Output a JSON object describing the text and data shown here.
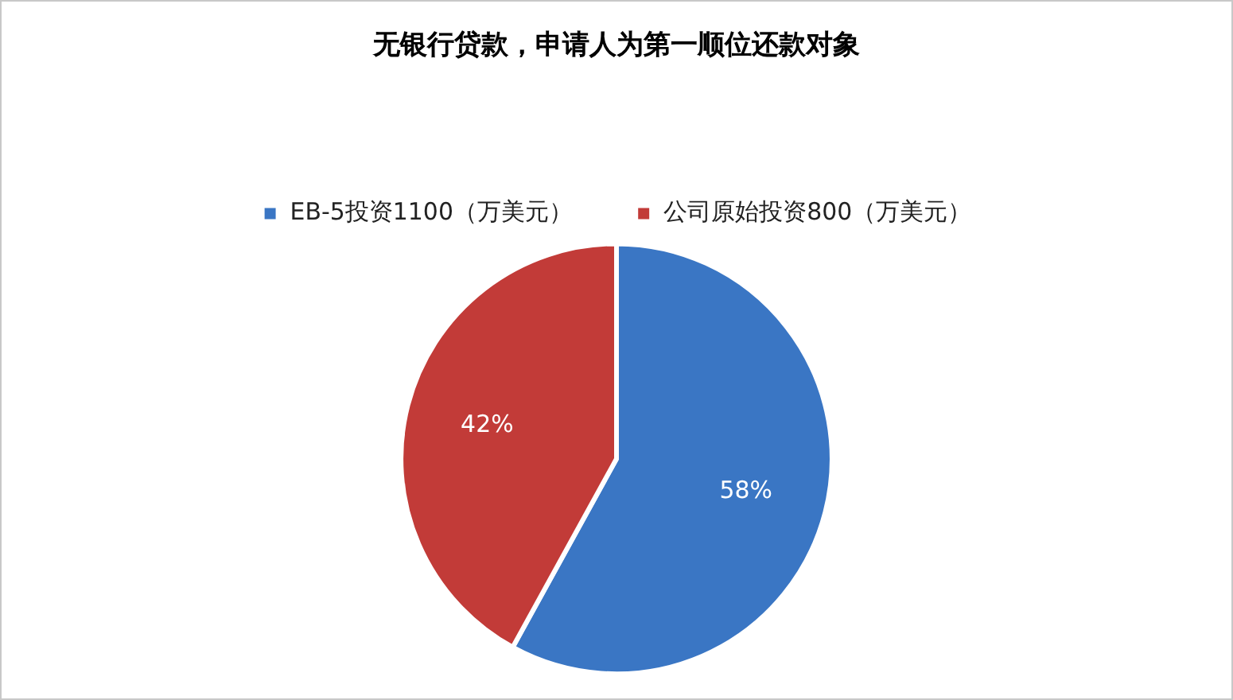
{
  "chart_data": {
    "type": "pie",
    "title": "无银行贷款，申请人为第一顺位还款对象",
    "categories": [
      "EB-5投资1100（万美元）",
      "公司原始投资800（万美元）"
    ],
    "values": [
      58,
      42
    ],
    "colors": [
      "#3a76c4",
      "#c23b38"
    ],
    "value_labels": [
      "58%",
      "42%"
    ],
    "legend": "top"
  }
}
